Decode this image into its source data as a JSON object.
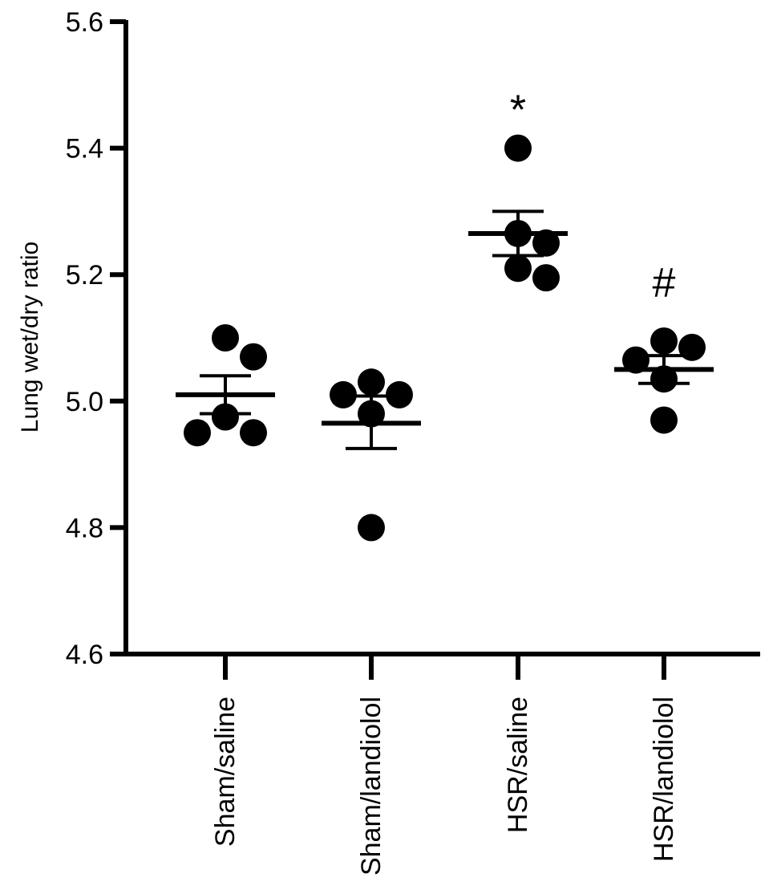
{
  "chart_data": {
    "type": "scatter",
    "title": "",
    "xlabel": "",
    "ylabel": "Lung wet/dry ratio",
    "ylim": [
      4.6,
      5.6
    ],
    "yticks": [
      "4.6",
      "4.8",
      "5.0",
      "5.2",
      "5.4",
      "5.6"
    ],
    "grid": false,
    "legend": "none",
    "categories": [
      "Sham/saline",
      "Sham/landiolol",
      "HSR/saline",
      "HSR/landiolol"
    ],
    "groups": [
      {
        "name": "Sham/saline",
        "points": [
          5.1,
          5.07,
          4.975,
          4.95,
          4.95
        ],
        "mean": 5.01,
        "sem": [
          4.98,
          5.04
        ],
        "annotation": ""
      },
      {
        "name": "Sham/landiolol",
        "points": [
          5.03,
          5.01,
          5.01,
          4.98,
          4.8
        ],
        "mean": 4.965,
        "sem": [
          4.925,
          5.008
        ],
        "annotation": ""
      },
      {
        "name": "HSR/saline",
        "points": [
          5.4,
          5.265,
          5.25,
          5.21,
          5.195
        ],
        "mean": 5.265,
        "sem": [
          5.23,
          5.3
        ],
        "annotation": "*"
      },
      {
        "name": "HSR/landiolol",
        "points": [
          5.095,
          5.085,
          5.065,
          5.035,
          4.97
        ],
        "mean": 5.05,
        "sem": [
          5.028,
          5.072
        ],
        "annotation": "#"
      }
    ],
    "colors": {
      "marker": "#000000",
      "axis": "#000000"
    }
  }
}
